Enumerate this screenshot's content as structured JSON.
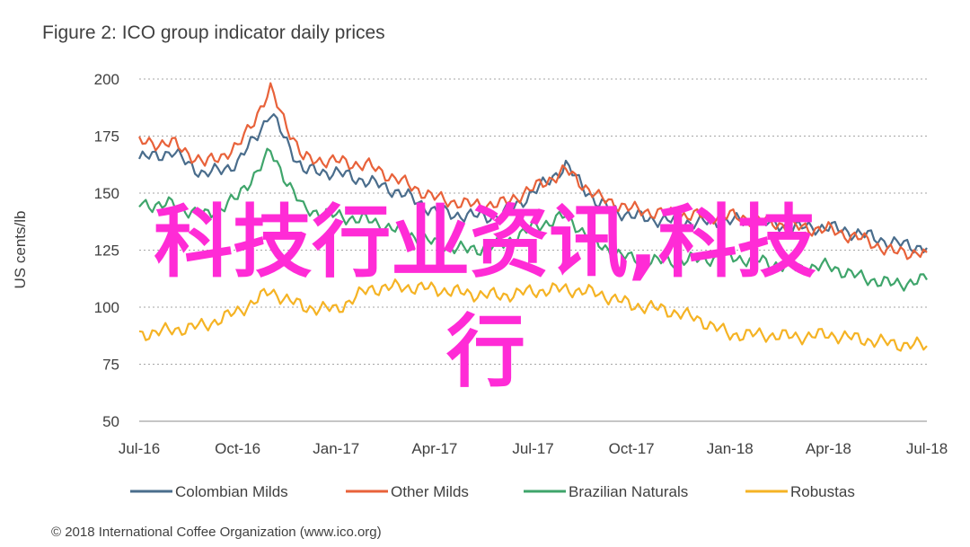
{
  "chart_data": {
    "type": "line",
    "title": "Figure 2: ICO group indicator daily prices",
    "ylabel": "US cents/lb",
    "xlabel": "",
    "ylim": [
      50,
      200
    ],
    "y_ticks": [
      200,
      175,
      150,
      125,
      100,
      75,
      50
    ],
    "x_ticks": [
      "Jul-16",
      "Oct-16",
      "Jan-17",
      "Apr-17",
      "Jul-17",
      "Oct-17",
      "Jan-18",
      "Apr-18",
      "Jul-18"
    ],
    "grid": true,
    "legend_position": "bottom",
    "x": [
      "Jul-16",
      "Aug-16",
      "Sep-16",
      "Oct-16",
      "Nov-16",
      "Dec-16",
      "Jan-17",
      "Feb-17",
      "Mar-17",
      "Apr-17",
      "May-17",
      "Jun-17",
      "Jul-17",
      "Aug-17",
      "Sep-17",
      "Oct-17",
      "Nov-17",
      "Dec-17",
      "Jan-18",
      "Feb-18",
      "Mar-18",
      "Apr-18",
      "May-18",
      "Jun-18",
      "Jul-18"
    ],
    "series": [
      {
        "name": "Colombian Milds",
        "color": "#4a6d8c",
        "values": [
          165,
          168,
          158,
          163,
          185,
          160,
          159,
          155,
          150,
          142,
          140,
          140,
          150,
          162,
          145,
          140,
          138,
          137,
          138,
          137,
          135,
          135,
          132,
          128,
          126
        ]
      },
      {
        "name": "Other Milds",
        "color": "#e8623a",
        "values": [
          172,
          172,
          163,
          170,
          195,
          165,
          164,
          162,
          155,
          148,
          145,
          145,
          152,
          160,
          148,
          143,
          141,
          140,
          140,
          138,
          135,
          134,
          130,
          124,
          124
        ]
      },
      {
        "name": "Brazilian Naturals",
        "color": "#3fa56b",
        "values": [
          145,
          145,
          140,
          148,
          168,
          143,
          140,
          138,
          133,
          128,
          125,
          127,
          135,
          140,
          127,
          121,
          120,
          121,
          122,
          120,
          117,
          118,
          113,
          110,
          112
        ]
      },
      {
        "name": "Robustas",
        "color": "#f5b324",
        "values": [
          88,
          90,
          92,
          98,
          107,
          100,
          99,
          108,
          109,
          108,
          106,
          105,
          107,
          108,
          106,
          101,
          99,
          95,
          88,
          88,
          87,
          88,
          86,
          84,
          83
        ]
      }
    ]
  },
  "overlay": {
    "line1": "科技行业资讯,科技",
    "line2": "行",
    "color": "#ff2bd6"
  },
  "footer": "© 2018 International Coffee Organization (www.ico.org)"
}
